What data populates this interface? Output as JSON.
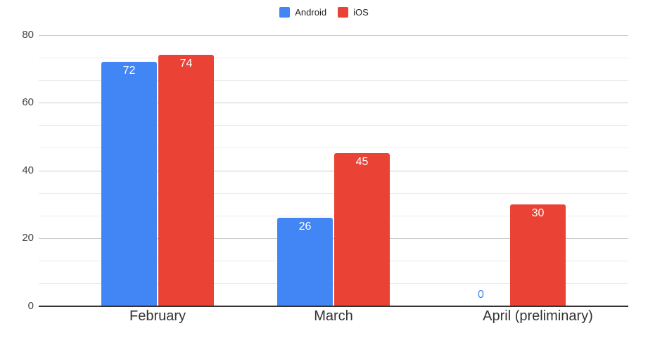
{
  "legend": {
    "position": "top",
    "items": [
      {
        "label": "Android",
        "color": "#4285F4"
      },
      {
        "label": "iOS",
        "color": "#EA4335"
      }
    ]
  },
  "chart_data": {
    "type": "bar",
    "title": "",
    "xlabel": "",
    "ylabel": "",
    "categories": [
      "February",
      "March",
      "April (preliminary)"
    ],
    "series": [
      {
        "name": "Android",
        "color": "#4285F4",
        "values": [
          72,
          26,
          0
        ]
      },
      {
        "name": "iOS",
        "color": "#EA4335",
        "values": [
          74,
          45,
          30
        ]
      }
    ],
    "ylim": [
      0,
      80
    ],
    "yticks": [
      0,
      20,
      40,
      60,
      80
    ],
    "minor_gridlines_per_interval": 2,
    "grid": true,
    "legend_position": "top",
    "bar_value_labels": "shown inside bar top in white; zero values shown above axis in series color",
    "colors": {
      "major_gridline": "#cccccc",
      "minor_gridline": "#ebebeb",
      "axis_line": "#333333",
      "tick_label": "#444444",
      "category_label": "#333333",
      "bar_label": "#ffffff",
      "background": "#ffffff"
    }
  }
}
